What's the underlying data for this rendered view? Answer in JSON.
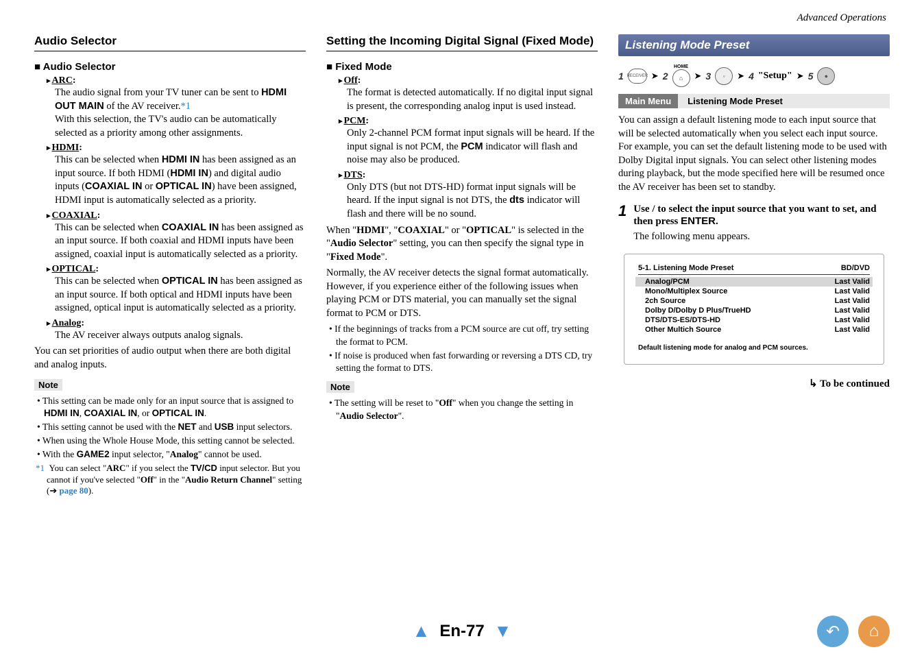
{
  "header": {
    "section": "Advanced Operations"
  },
  "col1": {
    "title": "Audio Selector",
    "sub": "Audio Selector",
    "items": [
      {
        "h": "ARC",
        "body_pre": "The audio signal from your TV tuner can be sent to ",
        "bold1": "HDMI OUT MAIN",
        "body_mid": " of the AV receiver.",
        "ref": "*1",
        "body2": "With this selection, the TV's audio can be automatically selected as a priority among other assignments."
      },
      {
        "h": "HDMI",
        "body": "This can be selected when ",
        "b1": "HDMI IN",
        "t1": " has been assigned as an input source. If both HDMI (",
        "b2": "HDMI IN",
        "t2": ") and digital audio inputs (",
        "b3": "COAXIAL IN",
        "t3": " or ",
        "b4": "OPTICAL IN",
        "t4": ") have been assigned, HDMI input is automatically selected as a priority."
      },
      {
        "h": "COAXIAL",
        "body": "This can be selected when ",
        "b1": "COAXIAL IN",
        "t1": " has been assigned as an input source. If both coaxial and HDMI inputs have been assigned, coaxial input is automatically selected as a priority."
      },
      {
        "h": "OPTICAL",
        "body": "This can be selected when ",
        "b1": "OPTICAL IN",
        "t1": " has been assigned as an input source. If both optical and HDMI inputs have been assigned, optical input is automatically selected as a priority."
      },
      {
        "h": "Analog",
        "body_plain": "The AV receiver always outputs analog signals."
      }
    ],
    "after": "You can set priorities of audio output when there are both digital and analog inputs.",
    "note_label": "Note",
    "notes": [
      "This setting can be made only for an input source that is assigned to <b class='sb'>HDMI IN</b>, <b class='sb'>COAXIAL IN</b>, or <b class='sb'>OPTICAL IN</b>.",
      "This setting cannot be used with the <b class='sb'>NET</b> and <b class='sb'>USB</b> input selectors.",
      "When using the Whole House Mode, this setting cannot be selected.",
      "With the <b class='sb'>GAME2</b> input selector, \"<b>Analog</b>\" cannot be used."
    ],
    "footnote": "You can select \"<b>ARC</b>\" if you select the <b class='sb'>TV/CD</b> input selector. But you cannot if you've selected \"<b>Off</b>\" in the \"<b>Audio Return Channel</b>\" setting (➔ ",
    "footnote_link": "page 80",
    "footnote_tail": ").",
    "footnote_marker": "*1"
  },
  "col2": {
    "title": "Setting the Incoming Digital Signal (Fixed Mode)",
    "sub": "Fixed Mode",
    "items": [
      {
        "h": "Off",
        "body": "The format is detected automatically. If no digital input signal is present, the corresponding analog input is used instead."
      },
      {
        "h": "PCM",
        "body": "Only 2-channel PCM format input signals will be heard. If the input signal is not PCM, the <b class='sb'>PCM</b> indicator will flash and noise may also be produced."
      },
      {
        "h": "DTS",
        "body": "Only DTS (but not DTS-HD) format input signals will be heard. If the input signal is not DTS, the <b class='sb'>dts</b> indicator will flash and there will be no sound."
      }
    ],
    "p1": "When \"<b>HDMI</b>\", \"<b>COAXIAL</b>\" or \"<b>OPTICAL</b>\" is selected in the \"<b>Audio Selector</b>\" setting, you can then specify the signal type in \"<b>Fixed Mode</b>\".",
    "p2": "Normally, the AV receiver detects the signal format automatically. However, if you experience either of the following issues when playing PCM or DTS material, you can manually set the signal format to PCM or DTS.",
    "bullets": [
      "If the beginnings of tracks from a PCM source are cut off, try setting the format to PCM.",
      "If noise is produced when fast forwarding or reversing a DTS CD, try setting the format to DTS."
    ],
    "note_label": "Note",
    "notes": [
      "The setting will be reset to \"<b>Off</b>\" when you change the setting in \"<b>Audio Selector</b>\"."
    ]
  },
  "col3": {
    "banner": "Listening Mode Preset",
    "nav": {
      "n1": "1",
      "l1": "RECEIVER",
      "n2": "2",
      "l2": "HOME",
      "n3": "3",
      "n4": "4",
      "setup": "\"Setup\"",
      "n5": "5"
    },
    "crumb_a": "Main Menu",
    "crumb_b": "Listening Mode Preset",
    "p1": "You can assign a default listening mode to each input source that will be selected automatically when you select each input source. For example, you can set the default listening mode to be used with Dolby Digital input signals. You can select other listening modes during playback, but the mode specified here will be resumed once the AV receiver has been set to standby.",
    "step1_num": "1",
    "step1_a": "Use   /   to select the input source that you want to set, and then press ",
    "step1_b": "ENTER",
    "step1_c": ".",
    "step1_after": "The following menu appears.",
    "osd": {
      "title": "5-1. Listening Mode Preset",
      "right": "BD/DVD",
      "rows": [
        {
          "l": "Analog/PCM",
          "r": "Last Valid",
          "hl": true
        },
        {
          "l": "Mono/Multiplex Source",
          "r": "Last Valid"
        },
        {
          "l": "2ch Source",
          "r": "Last Valid"
        },
        {
          "l": "Dolby D/Dolby D Plus/TrueHD",
          "r": "Last Valid"
        },
        {
          "l": "DTS/DTS-ES/DTS-HD",
          "r": "Last Valid"
        },
        {
          "l": "Other Multich Source",
          "r": "Last Valid"
        }
      ],
      "foot": "Default listening mode for analog and PCM sources."
    },
    "cont": "To be continued"
  },
  "footer": {
    "page": "En-77"
  }
}
